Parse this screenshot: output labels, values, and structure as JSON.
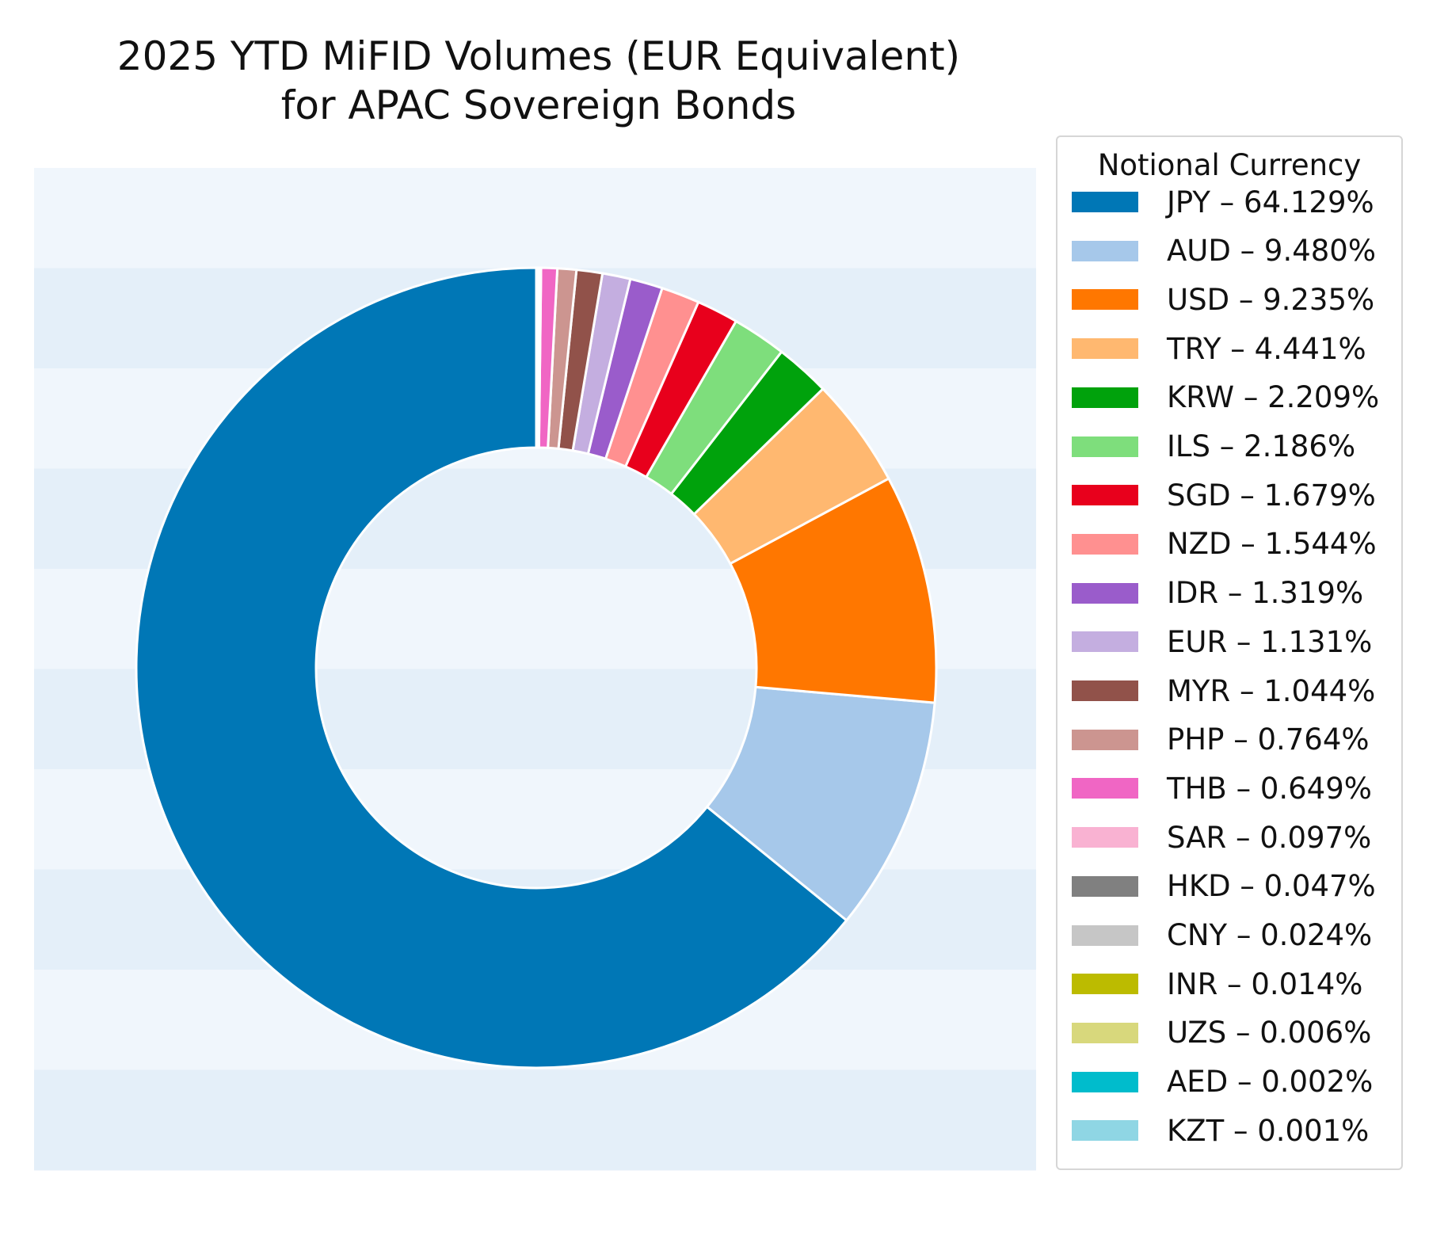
{
  "chart_data": {
    "type": "pie",
    "style": "donut",
    "title": "2025 YTD MiFID Volumes (EUR Equivalent) for APAC Sovereign Bonds",
    "title_lines": [
      "2025 YTD MiFID Volumes (EUR Equivalent)",
      "for APAC Sovereign Bonds"
    ],
    "legend_title": "Notional Currency",
    "legend_placement": "right",
    "start": "top",
    "direction": "counterclockwise",
    "background": "horizontal alternating light-blue stripes",
    "slices": [
      {
        "label": "JPY",
        "value": 64.129,
        "legend": "JPY – 64.129%",
        "color": "#0077b6"
      },
      {
        "label": "AUD",
        "value": 9.48,
        "legend": "AUD – 9.480%",
        "color": "#a6c8ea"
      },
      {
        "label": "USD",
        "value": 9.235,
        "legend": "USD – 9.235%",
        "color": "#ff7700"
      },
      {
        "label": "TRY",
        "value": 4.441,
        "legend": "TRY – 4.441%",
        "color": "#ffb870"
      },
      {
        "label": "KRW",
        "value": 2.209,
        "legend": "KRW – 2.209%",
        "color": "#00a20c"
      },
      {
        "label": "ILS",
        "value": 2.186,
        "legend": "ILS – 2.186%",
        "color": "#7ede7c"
      },
      {
        "label": "SGD",
        "value": 1.679,
        "legend": "SGD – 1.679%",
        "color": "#e8001c"
      },
      {
        "label": "NZD",
        "value": 1.544,
        "legend": "NZD – 1.544%",
        "color": "#ff9090"
      },
      {
        "label": "IDR",
        "value": 1.319,
        "legend": "IDR – 1.319%",
        "color": "#9a5ccb"
      },
      {
        "label": "EUR",
        "value": 1.131,
        "legend": "EUR – 1.131%",
        "color": "#c4aee0"
      },
      {
        "label": "MYR",
        "value": 1.044,
        "legend": "MYR – 1.044%",
        "color": "#91524a"
      },
      {
        "label": "PHP",
        "value": 0.764,
        "legend": "PHP – 0.764%",
        "color": "#cc9590"
      },
      {
        "label": "THB",
        "value": 0.649,
        "legend": "THB – 0.649%",
        "color": "#f066c4"
      },
      {
        "label": "SAR",
        "value": 0.097,
        "legend": "SAR – 0.097%",
        "color": "#f9b2d2"
      },
      {
        "label": "HKD",
        "value": 0.047,
        "legend": "HKD – 0.047%",
        "color": "#808080"
      },
      {
        "label": "CNY",
        "value": 0.024,
        "legend": "CNY – 0.024%",
        "color": "#c6c6c6"
      },
      {
        "label": "INR",
        "value": 0.014,
        "legend": "INR – 0.014%",
        "color": "#bcbb00"
      },
      {
        "label": "UZS",
        "value": 0.006,
        "legend": "UZS – 0.006%",
        "color": "#d8d87c"
      },
      {
        "label": "AED",
        "value": 0.002,
        "legend": "AED – 0.002%",
        "color": "#00bccc"
      },
      {
        "label": "KZT",
        "value": 0.001,
        "legend": "KZT – 0.001%",
        "color": "#8fd6e4"
      }
    ]
  },
  "colors": {
    "stripe_light": "#f0f6fc",
    "stripe_dark": "#e4eff9",
    "slice_edge": "#ffffff"
  }
}
